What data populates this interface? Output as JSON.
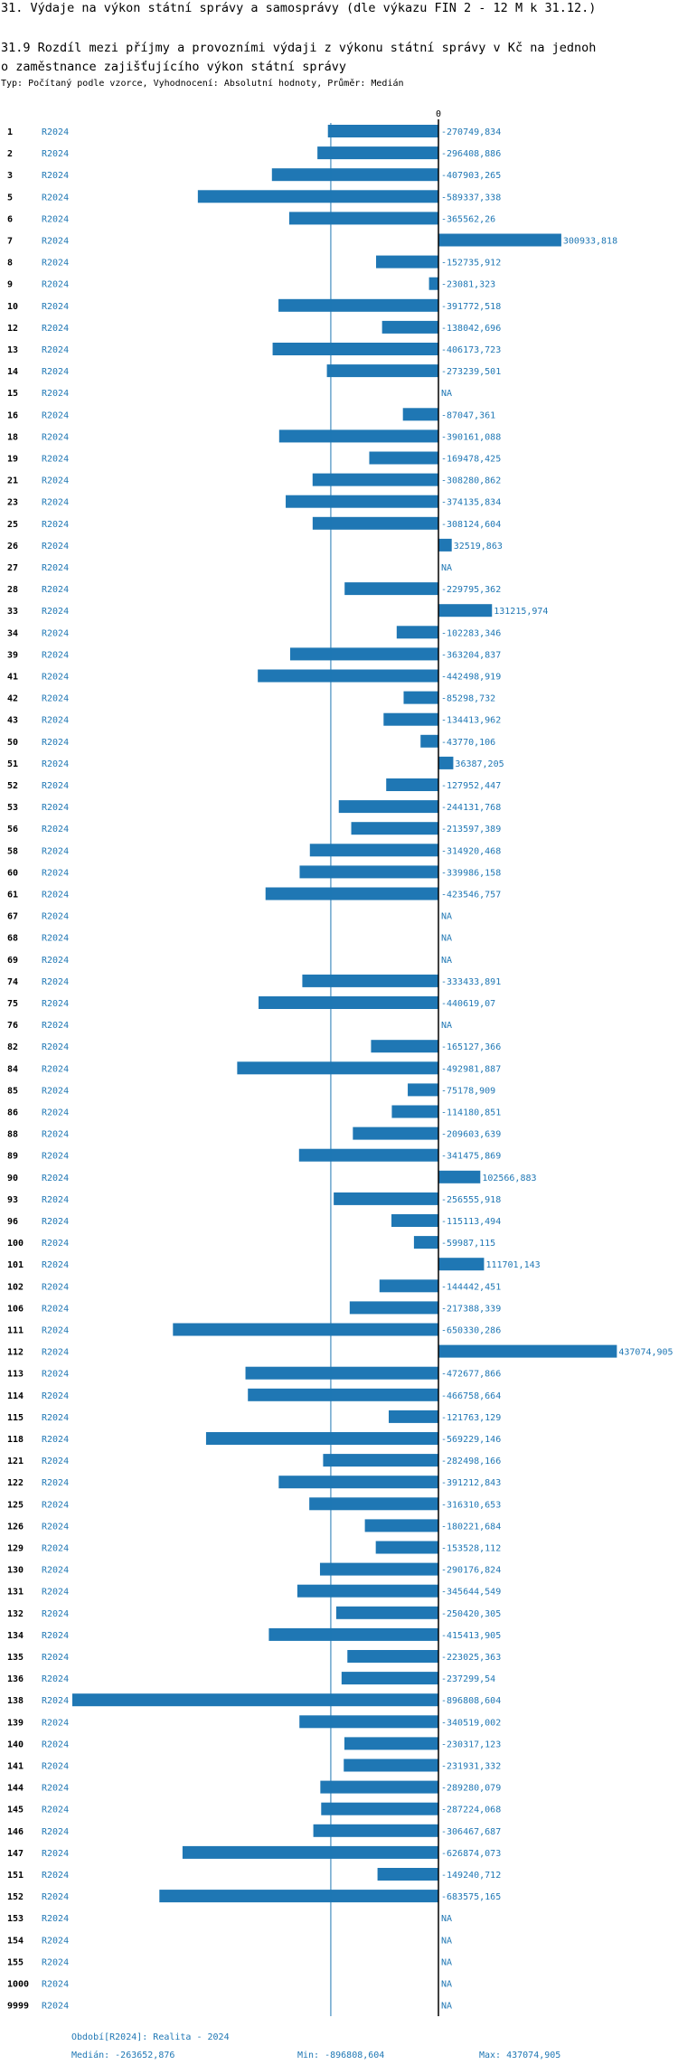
{
  "page": {
    "title": "31. Výdaje na výkon státní správy a samosprávy (dle výkazu FIN 2 - 12 M k 31.12.)",
    "subtitle_line1": "31.9 Rozdíl mezi příjmy a provozními výdaji z výkonu státní správy v Kč na jednoh",
    "subtitle_line2": "o zaměstnance zajišťujícího výkon státní správy",
    "meta": "Typ: Počítaný podle vzorce, Vyhodnocení: Absolutní hodnoty, Průměr: Medián"
  },
  "footer": {
    "period": "Období[R2024]: Realita - 2024",
    "median": "Medián: -263652,876",
    "min": "Min: -896808,604",
    "max": "Max: 437074,905"
  },
  "colors": {
    "bar": "#1f77b4",
    "text_blue": "#1f77b4",
    "median_line": "#1f77b4",
    "axis": "#000000"
  },
  "chart_data": {
    "type": "bar",
    "orientation": "horizontal",
    "zero_label": "0",
    "series_name": "R2024",
    "median": -263652.876,
    "min": -896808.604,
    "max": 437074.905,
    "rows": [
      {
        "id": "1",
        "period": "R2024",
        "value": -270749.834,
        "label": "-270749,834"
      },
      {
        "id": "2",
        "period": "R2024",
        "value": -296408.886,
        "label": "-296408,886"
      },
      {
        "id": "3",
        "period": "R2024",
        "value": -407903.265,
        "label": "-407903,265"
      },
      {
        "id": "5",
        "period": "R2024",
        "value": -589337.338,
        "label": "-589337,338"
      },
      {
        "id": "6",
        "period": "R2024",
        "value": -365562.26,
        "label": "-365562,26"
      },
      {
        "id": "7",
        "period": "R2024",
        "value": 300933.818,
        "label": "300933,818"
      },
      {
        "id": "8",
        "period": "R2024",
        "value": -152735.912,
        "label": "-152735,912"
      },
      {
        "id": "9",
        "period": "R2024",
        "value": -23081.323,
        "label": "-23081,323"
      },
      {
        "id": "10",
        "period": "R2024",
        "value": -391772.518,
        "label": "-391772,518"
      },
      {
        "id": "12",
        "period": "R2024",
        "value": -138042.696,
        "label": "-138042,696"
      },
      {
        "id": "13",
        "period": "R2024",
        "value": -406173.723,
        "label": "-406173,723"
      },
      {
        "id": "14",
        "period": "R2024",
        "value": -273239.501,
        "label": "-273239,501"
      },
      {
        "id": "15",
        "period": "R2024",
        "value": null,
        "label": "NA"
      },
      {
        "id": "16",
        "period": "R2024",
        "value": -87047.361,
        "label": "-87047,361"
      },
      {
        "id": "18",
        "period": "R2024",
        "value": -390161.088,
        "label": "-390161,088"
      },
      {
        "id": "19",
        "period": "R2024",
        "value": -169478.425,
        "label": "-169478,425"
      },
      {
        "id": "21",
        "period": "R2024",
        "value": -308280.862,
        "label": "-308280,862"
      },
      {
        "id": "23",
        "period": "R2024",
        "value": -374135.834,
        "label": "-374135,834"
      },
      {
        "id": "25",
        "period": "R2024",
        "value": -308124.604,
        "label": "-308124,604"
      },
      {
        "id": "26",
        "period": "R2024",
        "value": 32519.863,
        "label": "32519,863"
      },
      {
        "id": "27",
        "period": "R2024",
        "value": null,
        "label": "NA"
      },
      {
        "id": "28",
        "period": "R2024",
        "value": -229795.362,
        "label": "-229795,362"
      },
      {
        "id": "33",
        "period": "R2024",
        "value": 131215.974,
        "label": "131215,974"
      },
      {
        "id": "34",
        "period": "R2024",
        "value": -102283.346,
        "label": "-102283,346"
      },
      {
        "id": "39",
        "period": "R2024",
        "value": -363204.837,
        "label": "-363204,837"
      },
      {
        "id": "41",
        "period": "R2024",
        "value": -442498.919,
        "label": "-442498,919"
      },
      {
        "id": "42",
        "period": "R2024",
        "value": -85298.732,
        "label": "-85298,732"
      },
      {
        "id": "43",
        "period": "R2024",
        "value": -134413.962,
        "label": "-134413,962"
      },
      {
        "id": "50",
        "period": "R2024",
        "value": -43770.106,
        "label": "-43770,106"
      },
      {
        "id": "51",
        "period": "R2024",
        "value": 36387.205,
        "label": "36387,205"
      },
      {
        "id": "52",
        "period": "R2024",
        "value": -127952.447,
        "label": "-127952,447"
      },
      {
        "id": "53",
        "period": "R2024",
        "value": -244131.768,
        "label": "-244131,768"
      },
      {
        "id": "56",
        "period": "R2024",
        "value": -213597.389,
        "label": "-213597,389"
      },
      {
        "id": "58",
        "period": "R2024",
        "value": -314920.468,
        "label": "-314920,468"
      },
      {
        "id": "60",
        "period": "R2024",
        "value": -339986.158,
        "label": "-339986,158"
      },
      {
        "id": "61",
        "period": "R2024",
        "value": -423546.757,
        "label": "-423546,757"
      },
      {
        "id": "67",
        "period": "R2024",
        "value": null,
        "label": "NA"
      },
      {
        "id": "68",
        "period": "R2024",
        "value": null,
        "label": "NA"
      },
      {
        "id": "69",
        "period": "R2024",
        "value": null,
        "label": "NA"
      },
      {
        "id": "74",
        "period": "R2024",
        "value": -333433.891,
        "label": "-333433,891"
      },
      {
        "id": "75",
        "period": "R2024",
        "value": -440619.07,
        "label": "-440619,07"
      },
      {
        "id": "76",
        "period": "R2024",
        "value": null,
        "label": "NA"
      },
      {
        "id": "82",
        "period": "R2024",
        "value": -165127.366,
        "label": "-165127,366"
      },
      {
        "id": "84",
        "period": "R2024",
        "value": -492981.887,
        "label": "-492981,887"
      },
      {
        "id": "85",
        "period": "R2024",
        "value": -75178.909,
        "label": "-75178,909"
      },
      {
        "id": "86",
        "period": "R2024",
        "value": -114180.851,
        "label": "-114180,851"
      },
      {
        "id": "88",
        "period": "R2024",
        "value": -209603.639,
        "label": "-209603,639"
      },
      {
        "id": "89",
        "period": "R2024",
        "value": -341475.869,
        "label": "-341475,869"
      },
      {
        "id": "90",
        "period": "R2024",
        "value": 102566.883,
        "label": "102566,883"
      },
      {
        "id": "93",
        "period": "R2024",
        "value": -256555.918,
        "label": "-256555,918"
      },
      {
        "id": "96",
        "period": "R2024",
        "value": -115113.494,
        "label": "-115113,494"
      },
      {
        "id": "100",
        "period": "R2024",
        "value": -59987.115,
        "label": "-59987,115"
      },
      {
        "id": "101",
        "period": "R2024",
        "value": 111701.143,
        "label": "111701,143"
      },
      {
        "id": "102",
        "period": "R2024",
        "value": -144442.451,
        "label": "-144442,451"
      },
      {
        "id": "106",
        "period": "R2024",
        "value": -217388.339,
        "label": "-217388,339"
      },
      {
        "id": "111",
        "period": "R2024",
        "value": -650330.286,
        "label": "-650330,286"
      },
      {
        "id": "112",
        "period": "R2024",
        "value": 437074.905,
        "label": "437074,905"
      },
      {
        "id": "113",
        "period": "R2024",
        "value": -472677.866,
        "label": "-472677,866"
      },
      {
        "id": "114",
        "period": "R2024",
        "value": -466758.664,
        "label": "-466758,664"
      },
      {
        "id": "115",
        "period": "R2024",
        "value": -121763.129,
        "label": "-121763,129"
      },
      {
        "id": "118",
        "period": "R2024",
        "value": -569229.146,
        "label": "-569229,146"
      },
      {
        "id": "121",
        "period": "R2024",
        "value": -282498.166,
        "label": "-282498,166"
      },
      {
        "id": "122",
        "period": "R2024",
        "value": -391212.843,
        "label": "-391212,843"
      },
      {
        "id": "125",
        "period": "R2024",
        "value": -316310.653,
        "label": "-316310,653"
      },
      {
        "id": "126",
        "period": "R2024",
        "value": -180221.684,
        "label": "-180221,684"
      },
      {
        "id": "129",
        "period": "R2024",
        "value": -153528.112,
        "label": "-153528,112"
      },
      {
        "id": "130",
        "period": "R2024",
        "value": -290176.824,
        "label": "-290176,824"
      },
      {
        "id": "131",
        "period": "R2024",
        "value": -345644.549,
        "label": "-345644,549"
      },
      {
        "id": "132",
        "period": "R2024",
        "value": -250420.305,
        "label": "-250420,305"
      },
      {
        "id": "134",
        "period": "R2024",
        "value": -415413.905,
        "label": "-415413,905"
      },
      {
        "id": "135",
        "period": "R2024",
        "value": -223025.363,
        "label": "-223025,363"
      },
      {
        "id": "136",
        "period": "R2024",
        "value": -237299.54,
        "label": "-237299,54"
      },
      {
        "id": "138",
        "period": "R2024",
        "value": -896808.604,
        "label": "-896808,604"
      },
      {
        "id": "139",
        "period": "R2024",
        "value": -340519.002,
        "label": "-340519,002"
      },
      {
        "id": "140",
        "period": "R2024",
        "value": -230317.123,
        "label": "-230317,123"
      },
      {
        "id": "141",
        "period": "R2024",
        "value": -231931.332,
        "label": "-231931,332"
      },
      {
        "id": "144",
        "period": "R2024",
        "value": -289280.079,
        "label": "-289280,079"
      },
      {
        "id": "145",
        "period": "R2024",
        "value": -287224.068,
        "label": "-287224,068"
      },
      {
        "id": "146",
        "period": "R2024",
        "value": -306467.687,
        "label": "-306467,687"
      },
      {
        "id": "147",
        "period": "R2024",
        "value": -626874.073,
        "label": "-626874,073"
      },
      {
        "id": "151",
        "period": "R2024",
        "value": -149240.712,
        "label": "-149240,712"
      },
      {
        "id": "152",
        "period": "R2024",
        "value": -683575.165,
        "label": "-683575,165"
      },
      {
        "id": "153",
        "period": "R2024",
        "value": null,
        "label": "NA"
      },
      {
        "id": "154",
        "period": "R2024",
        "value": null,
        "label": "NA"
      },
      {
        "id": "155",
        "period": "R2024",
        "value": null,
        "label": "NA"
      },
      {
        "id": "1000",
        "period": "R2024",
        "value": null,
        "label": "NA"
      },
      {
        "id": "9999",
        "period": "R2024",
        "value": null,
        "label": "NA"
      }
    ]
  }
}
